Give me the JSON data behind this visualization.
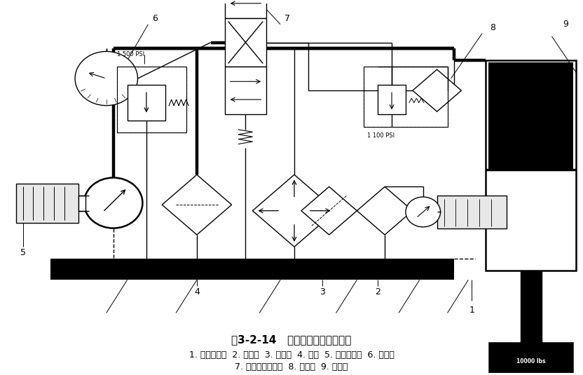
{
  "title": "图3-2-14   液压系统基本组成示意",
  "caption_line1": "1. 叶片泵电机  2. 过滤器  3. 冷却器  4. 油箱  5. 叶片泵电机  6. 压力表",
  "caption_line2": "7. 三位四通方向阀  8. 单向阀  9. 液压缸",
  "bg_color": "#ffffff",
  "fig_width": 8.32,
  "fig_height": 5.35
}
